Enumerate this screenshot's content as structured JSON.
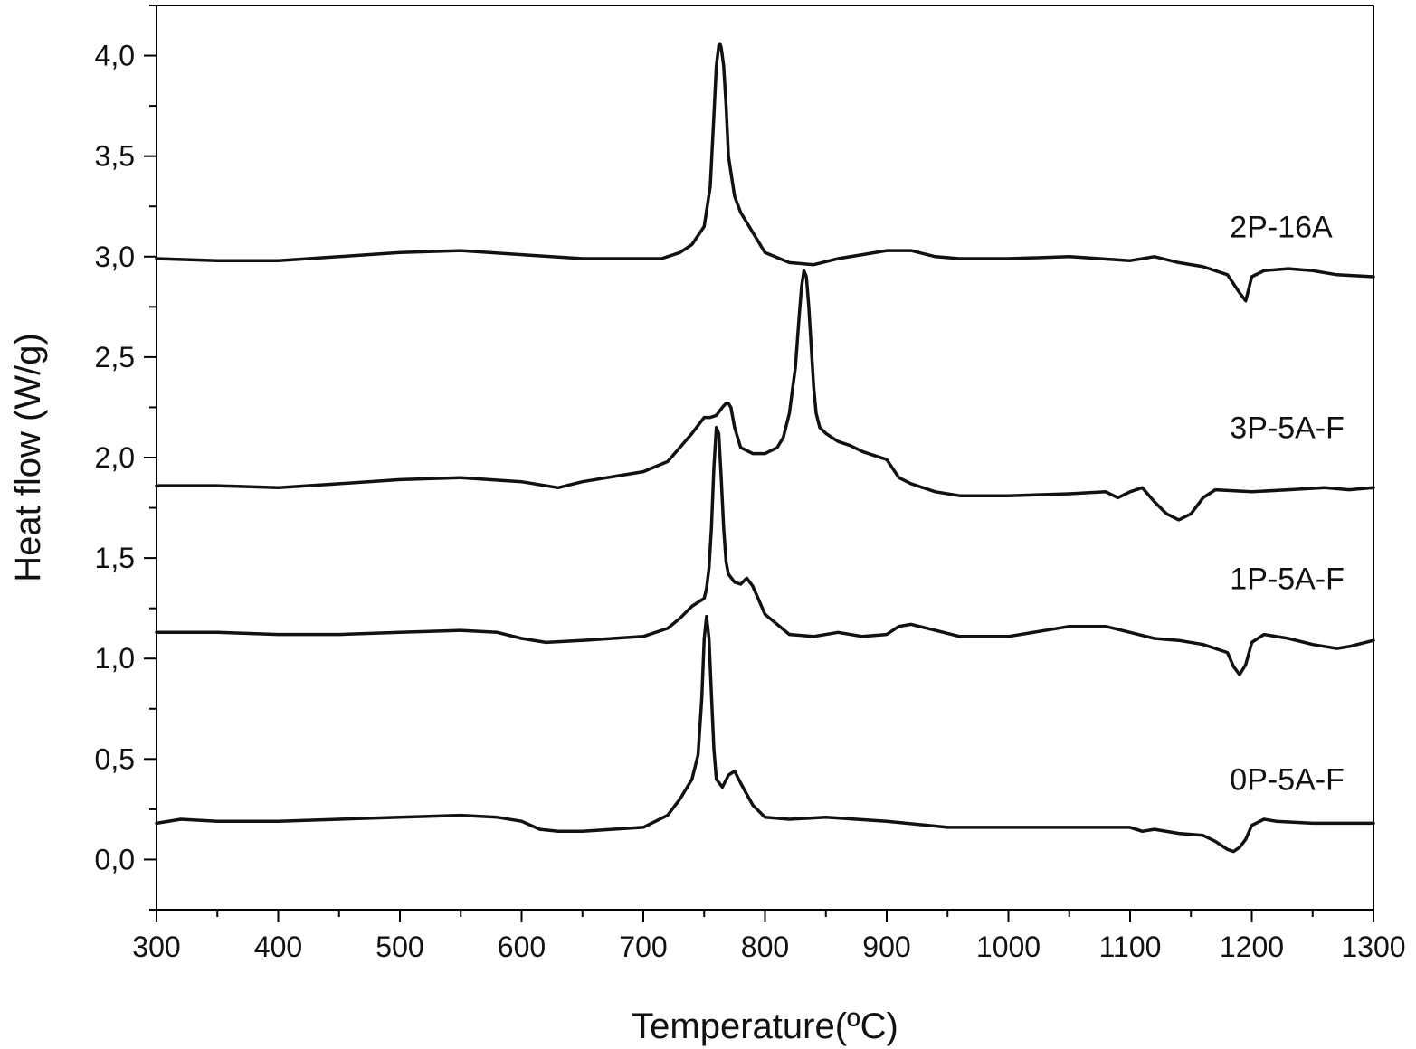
{
  "chart_data": {
    "type": "line",
    "title": "",
    "xlabel": "Temperature(ºC)",
    "ylabel": "Heat flow (W/g)",
    "xlim": [
      300,
      1300
    ],
    "ylim": [
      -0.25,
      4.25
    ],
    "x_ticks": [
      300,
      400,
      500,
      600,
      700,
      800,
      900,
      1000,
      1100,
      1200,
      1300
    ],
    "x_tick_labels": [
      "300",
      "400",
      "500",
      "600",
      "700",
      "800",
      "900",
      "1000",
      "1100",
      "1200",
      "1300"
    ],
    "y_ticks": [
      0.0,
      0.5,
      1.0,
      1.5,
      2.0,
      2.5,
      3.0,
      3.5,
      4.0
    ],
    "y_tick_labels": [
      "0,0",
      "0,5",
      "1,0",
      "1,5",
      "2,0",
      "2,5",
      "3,0",
      "3,5",
      "4,0"
    ],
    "grid": false,
    "line_color": "#111111",
    "series": [
      {
        "name": "2P-16A",
        "label_at": [
          1182,
          3.15
        ],
        "x": [
          300,
          350,
          400,
          450,
          500,
          550,
          600,
          650,
          700,
          715,
          730,
          740,
          750,
          755,
          758,
          760,
          762,
          763,
          764,
          766,
          768,
          770,
          775,
          780,
          790,
          800,
          820,
          840,
          860,
          880,
          900,
          920,
          940,
          960,
          1000,
          1050,
          1100,
          1120,
          1140,
          1160,
          1180,
          1190,
          1195,
          1200,
          1210,
          1230,
          1250,
          1270,
          1300
        ],
        "y": [
          2.99,
          2.98,
          2.98,
          3.0,
          3.02,
          3.03,
          3.01,
          2.99,
          2.99,
          2.99,
          3.02,
          3.06,
          3.15,
          3.35,
          3.7,
          3.95,
          4.05,
          4.06,
          4.04,
          3.95,
          3.75,
          3.5,
          3.3,
          3.22,
          3.12,
          3.02,
          2.97,
          2.96,
          2.99,
          3.01,
          3.03,
          3.03,
          3.0,
          2.99,
          2.99,
          3.0,
          2.98,
          3.0,
          2.97,
          2.95,
          2.91,
          2.82,
          2.78,
          2.9,
          2.93,
          2.94,
          2.93,
          2.91,
          2.9
        ]
      },
      {
        "name": "3P-5A-F",
        "label_at": [
          1182,
          2.15
        ],
        "x": [
          300,
          350,
          400,
          450,
          500,
          550,
          600,
          620,
          630,
          650,
          680,
          700,
          720,
          730,
          740,
          750,
          755,
          760,
          765,
          768,
          770,
          772,
          775,
          780,
          790,
          800,
          810,
          815,
          820,
          825,
          828,
          830,
          832,
          834,
          836,
          838,
          840,
          842,
          845,
          850,
          855,
          860,
          870,
          880,
          890,
          900,
          910,
          920,
          940,
          960,
          1000,
          1050,
          1080,
          1090,
          1100,
          1110,
          1120,
          1130,
          1140,
          1150,
          1155,
          1160,
          1170,
          1200,
          1230,
          1260,
          1280,
          1300
        ],
        "y": [
          1.86,
          1.86,
          1.85,
          1.87,
          1.89,
          1.9,
          1.88,
          1.86,
          1.85,
          1.88,
          1.91,
          1.93,
          1.98,
          2.05,
          2.12,
          2.2,
          2.2,
          2.21,
          2.25,
          2.27,
          2.27,
          2.25,
          2.15,
          2.05,
          2.02,
          2.02,
          2.05,
          2.1,
          2.22,
          2.45,
          2.7,
          2.85,
          2.93,
          2.9,
          2.75,
          2.55,
          2.35,
          2.22,
          2.15,
          2.12,
          2.1,
          2.08,
          2.06,
          2.03,
          2.01,
          1.99,
          1.9,
          1.87,
          1.83,
          1.81,
          1.81,
          1.82,
          1.83,
          1.8,
          1.83,
          1.85,
          1.78,
          1.72,
          1.69,
          1.72,
          1.76,
          1.8,
          1.84,
          1.83,
          1.84,
          1.85,
          1.84,
          1.85
        ]
      },
      {
        "name": "1P-5A-F",
        "label_at": [
          1182,
          1.4
        ],
        "x": [
          300,
          350,
          400,
          450,
          500,
          550,
          580,
          600,
          620,
          650,
          700,
          720,
          730,
          740,
          745,
          750,
          752,
          754,
          756,
          758,
          760,
          762,
          764,
          766,
          768,
          770,
          775,
          780,
          785,
          790,
          800,
          820,
          840,
          860,
          880,
          900,
          910,
          920,
          940,
          960,
          1000,
          1050,
          1080,
          1100,
          1120,
          1140,
          1160,
          1180,
          1185,
          1190,
          1195,
          1200,
          1210,
          1230,
          1250,
          1270,
          1280,
          1300
        ],
        "y": [
          1.13,
          1.13,
          1.12,
          1.12,
          1.13,
          1.14,
          1.13,
          1.1,
          1.08,
          1.09,
          1.11,
          1.15,
          1.2,
          1.26,
          1.28,
          1.3,
          1.35,
          1.45,
          1.65,
          1.95,
          2.15,
          2.12,
          1.9,
          1.65,
          1.48,
          1.42,
          1.38,
          1.37,
          1.4,
          1.36,
          1.22,
          1.12,
          1.11,
          1.13,
          1.11,
          1.12,
          1.16,
          1.17,
          1.14,
          1.11,
          1.11,
          1.16,
          1.16,
          1.13,
          1.1,
          1.09,
          1.07,
          1.03,
          0.96,
          0.92,
          0.97,
          1.08,
          1.12,
          1.1,
          1.07,
          1.05,
          1.06,
          1.09
        ]
      },
      {
        "name": "0P-5A-F",
        "label_at": [
          1182,
          0.4
        ],
        "x": [
          300,
          320,
          350,
          400,
          450,
          500,
          550,
          580,
          600,
          615,
          630,
          650,
          700,
          720,
          730,
          740,
          745,
          748,
          750,
          752,
          754,
          756,
          758,
          760,
          765,
          770,
          775,
          780,
          790,
          800,
          820,
          850,
          900,
          950,
          1000,
          1050,
          1100,
          1110,
          1120,
          1140,
          1160,
          1170,
          1180,
          1185,
          1190,
          1195,
          1200,
          1210,
          1220,
          1250,
          1300
        ],
        "y": [
          0.18,
          0.2,
          0.19,
          0.19,
          0.2,
          0.21,
          0.22,
          0.21,
          0.19,
          0.15,
          0.14,
          0.14,
          0.16,
          0.22,
          0.3,
          0.4,
          0.52,
          0.8,
          1.1,
          1.21,
          1.1,
          0.82,
          0.55,
          0.4,
          0.36,
          0.42,
          0.44,
          0.38,
          0.27,
          0.21,
          0.2,
          0.21,
          0.19,
          0.16,
          0.16,
          0.16,
          0.16,
          0.14,
          0.15,
          0.13,
          0.12,
          0.09,
          0.05,
          0.04,
          0.06,
          0.1,
          0.17,
          0.2,
          0.19,
          0.18,
          0.18
        ]
      }
    ]
  }
}
